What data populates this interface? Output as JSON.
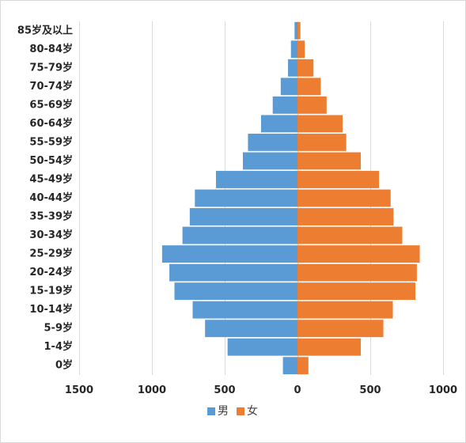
{
  "chart_data": {
    "type": "bar",
    "orientation": "horizontal",
    "categories": [
      "85岁及以上",
      "80-84岁",
      "75-79岁",
      "70-74岁",
      "65-69岁",
      "60-64岁",
      "55-59岁",
      "50-54岁",
      "45-49岁",
      "40-44岁",
      "35-39岁",
      "30-34岁",
      "25-29岁",
      "20-24岁",
      "15-19岁",
      "10-14岁",
      "5-9岁",
      "1-4岁",
      "0岁"
    ],
    "series": [
      {
        "name": "男",
        "color": "#5b9bd5",
        "values": [
          -20,
          -45,
          -65,
          -115,
          -170,
          -250,
          -340,
          -375,
          -560,
          -705,
          -740,
          -790,
          -930,
          -880,
          -845,
          -720,
          -635,
          -480,
          -100
        ]
      },
      {
        "name": "女",
        "color": "#ed7d31",
        "values": [
          20,
          50,
          110,
          160,
          200,
          310,
          335,
          435,
          560,
          640,
          660,
          720,
          840,
          820,
          810,
          655,
          590,
          435,
          75
        ]
      }
    ],
    "xlim": [
      -1500,
      1000
    ],
    "xticks": [
      -1500,
      -1000,
      -500,
      0,
      500,
      1000
    ],
    "xtick_labels": [
      "1500",
      "1000",
      "500",
      "0",
      "500",
      "1000"
    ],
    "grid": true,
    "legend": "bottom"
  }
}
